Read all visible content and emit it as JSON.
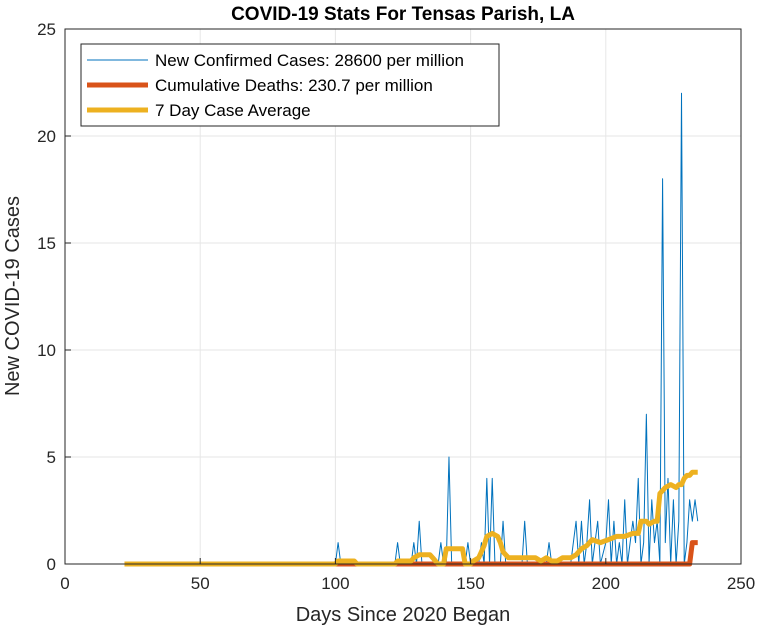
{
  "chart_data": {
    "type": "line",
    "title": "COVID-19 Stats For Tensas Parish, LA",
    "xlabel": "Days Since 2020 Began",
    "ylabel": "New COVID-19 Cases",
    "xlim": [
      0,
      250
    ],
    "ylim": [
      0,
      25
    ],
    "xticks": [
      0,
      50,
      100,
      150,
      200,
      250
    ],
    "yticks": [
      0,
      5,
      10,
      15,
      20,
      25
    ],
    "grid": true,
    "legend_position": "top-left",
    "series": [
      {
        "name": "New Confirmed Cases: 28600 per million",
        "color": "#0072BD",
        "line_width": "thin",
        "points": [
          [
            22,
            0
          ],
          [
            100,
            0
          ],
          [
            101,
            1
          ],
          [
            102,
            0
          ],
          [
            122,
            0
          ],
          [
            123,
            1
          ],
          [
            124,
            0
          ],
          [
            128,
            0
          ],
          [
            129,
            1
          ],
          [
            130,
            0
          ],
          [
            131,
            2
          ],
          [
            132,
            0
          ],
          [
            138,
            0
          ],
          [
            139,
            1
          ],
          [
            140,
            0
          ],
          [
            141,
            0
          ],
          [
            142,
            5
          ],
          [
            143,
            0
          ],
          [
            148,
            0
          ],
          [
            149,
            1
          ],
          [
            150,
            0
          ],
          [
            153,
            0
          ],
          [
            154,
            1
          ],
          [
            155,
            0
          ],
          [
            156,
            4
          ],
          [
            157,
            0
          ],
          [
            158,
            4
          ],
          [
            159,
            0
          ],
          [
            161,
            0
          ],
          [
            162,
            2
          ],
          [
            163,
            0
          ],
          [
            169,
            0
          ],
          [
            170,
            2
          ],
          [
            171,
            0
          ],
          [
            178,
            0
          ],
          [
            179,
            1
          ],
          [
            180,
            0
          ],
          [
            187,
            0
          ],
          [
            188,
            1
          ],
          [
            189,
            2
          ],
          [
            190,
            0
          ],
          [
            191,
            2
          ],
          [
            192,
            0
          ],
          [
            193,
            1
          ],
          [
            194,
            3
          ],
          [
            195,
            0
          ],
          [
            196,
            1
          ],
          [
            197,
            2
          ],
          [
            198,
            0
          ],
          [
            200,
            1
          ],
          [
            201,
            3
          ],
          [
            202,
            0
          ],
          [
            203,
            2
          ],
          [
            204,
            0
          ],
          [
            205,
            1
          ],
          [
            206,
            0
          ],
          [
            207,
            3
          ],
          [
            208,
            0
          ],
          [
            210,
            2
          ],
          [
            211,
            1
          ],
          [
            212,
            4
          ],
          [
            213,
            0
          ],
          [
            214,
            1
          ],
          [
            215,
            7
          ],
          [
            216,
            0
          ],
          [
            217,
            3
          ],
          [
            218,
            1
          ],
          [
            219,
            2
          ],
          [
            220,
            0
          ],
          [
            221,
            18
          ],
          [
            222,
            1
          ],
          [
            223,
            4
          ],
          [
            224,
            0
          ],
          [
            225,
            3
          ],
          [
            226,
            0
          ],
          [
            227,
            2
          ],
          [
            228,
            22
          ],
          [
            229,
            0
          ],
          [
            230,
            1
          ],
          [
            231,
            3
          ],
          [
            232,
            2
          ],
          [
            233,
            3
          ],
          [
            234,
            2
          ]
        ]
      },
      {
        "name": "Cumulative Deaths: 230.7 per million",
        "color": "#D95319",
        "line_width": "thick",
        "points": [
          [
            22,
            0
          ],
          [
            231,
            0
          ],
          [
            232,
            1
          ],
          [
            234,
            1
          ]
        ]
      },
      {
        "name": "7 Day Case Average",
        "color": "#EDB120",
        "line_width": "thick",
        "points": [
          [
            22,
            0
          ],
          [
            100,
            0
          ],
          [
            101,
            0.14
          ],
          [
            107,
            0.14
          ],
          [
            108,
            0
          ],
          [
            122,
            0
          ],
          [
            123,
            0.14
          ],
          [
            128,
            0.14
          ],
          [
            129,
            0.29
          ],
          [
            131,
            0.43
          ],
          [
            135,
            0.43
          ],
          [
            136,
            0.29
          ],
          [
            137,
            0.14
          ],
          [
            138,
            0
          ],
          [
            140,
            0
          ],
          [
            141,
            0.71
          ],
          [
            147,
            0.71
          ],
          [
            148,
            0
          ],
          [
            150,
            0
          ],
          [
            151,
            0.14
          ],
          [
            153,
            0.29
          ],
          [
            155,
            0.86
          ],
          [
            156,
            1.29
          ],
          [
            158,
            1.43
          ],
          [
            160,
            1.29
          ],
          [
            161,
            1
          ],
          [
            162,
            0.57
          ],
          [
            163,
            0.43
          ],
          [
            164,
            0.29
          ],
          [
            166,
            0.29
          ],
          [
            169,
            0.29
          ],
          [
            171,
            0.29
          ],
          [
            174,
            0.29
          ],
          [
            176,
            0.14
          ],
          [
            178,
            0.29
          ],
          [
            180,
            0.14
          ],
          [
            182,
            0.14
          ],
          [
            184,
            0.29
          ],
          [
            187,
            0.29
          ],
          [
            189,
            0.43
          ],
          [
            191,
            0.71
          ],
          [
            193,
            0.86
          ],
          [
            195,
            1.14
          ],
          [
            198,
            1
          ],
          [
            201,
            1.14
          ],
          [
            204,
            1.29
          ],
          [
            207,
            1.29
          ],
          [
            210,
            1.43
          ],
          [
            212,
            1.43
          ],
          [
            213,
            2
          ],
          [
            215,
            2
          ],
          [
            216,
            1.86
          ],
          [
            218,
            2
          ],
          [
            219,
            2
          ],
          [
            220,
            3.29
          ],
          [
            222,
            3.57
          ],
          [
            224,
            3.71
          ],
          [
            226,
            3.57
          ],
          [
            227,
            3.71
          ],
          [
            228,
            3.71
          ],
          [
            229,
            4
          ],
          [
            230,
            4.14
          ],
          [
            231,
            4.14
          ],
          [
            232,
            4.29
          ],
          [
            234,
            4.29
          ]
        ]
      }
    ]
  },
  "colors": {
    "grid": "#e6e6e6",
    "axis": "#262626"
  }
}
